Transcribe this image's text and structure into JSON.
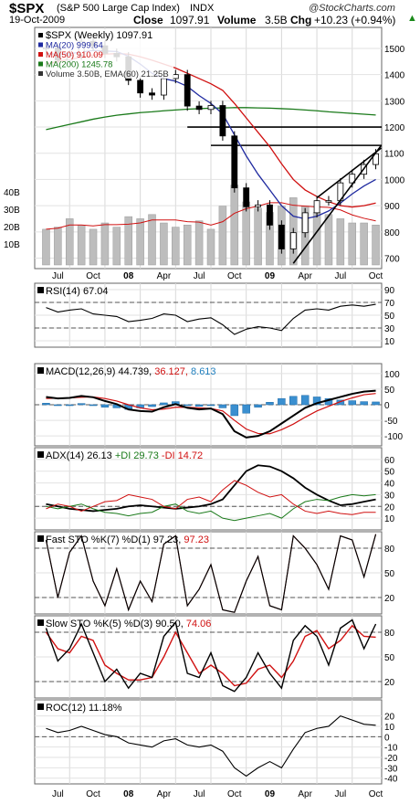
{
  "header": {
    "symbol": "$SPX",
    "name": "(S&P 500 Large Cap Index)",
    "exchange": "INDX",
    "watermark": "@StockCharts.com",
    "date": "19-Oct-2009",
    "close_label": "Close",
    "close_value": "1097.91",
    "volume_label": "Volume",
    "volume_value": "3.5B",
    "chg_label": "Chg",
    "chg_value": "+10.23 (+0.94%)",
    "chg_arrow": "▲"
  },
  "x_axis": {
    "labels": [
      "Jul",
      "Oct",
      "08",
      "Apr",
      "Jul",
      "Oct",
      "09",
      "Apr",
      "Jul",
      "Oct"
    ]
  },
  "chart_data": [
    {
      "type": "candlestick",
      "panel": "price",
      "legend": [
        {
          "text": "$SPX (Weekly) 1097.91",
          "color": "#000000"
        },
        {
          "text": "MA(20) 999.64",
          "color": "#1f2aa0"
        },
        {
          "text": "MA(50) 910.09",
          "color": "#d01010"
        },
        {
          "text": "MA(200) 1245.78",
          "color": "#1a7a1a"
        },
        {
          "text": "Volume 3.50B, EMA(60) 21.25B",
          "color": "#333333"
        }
      ],
      "y_ticks": [
        1500,
        1400,
        1300,
        1200,
        1100,
        1000,
        900,
        800,
        700
      ],
      "volume_ticks": [
        "40B",
        "30B",
        "20B",
        "10B"
      ],
      "ylim": [
        660,
        1580
      ],
      "x_dates": [
        "2007-06",
        "2007-07",
        "2007-08",
        "2007-09",
        "2007-10",
        "2007-11",
        "2007-12",
        "2008-01",
        "2008-02",
        "2008-03",
        "2008-04",
        "2008-05",
        "2008-06",
        "2008-07",
        "2008-08",
        "2008-09",
        "2008-10",
        "2008-11",
        "2008-12",
        "2009-01",
        "2009-02",
        "2009-03",
        "2009-04",
        "2009-05",
        "2009-06",
        "2009-07",
        "2009-08",
        "2009-09",
        "2009-10"
      ],
      "close": [
        1503,
        1455,
        1474,
        1527,
        1510,
        1481,
        1468,
        1378,
        1330,
        1322,
        1385,
        1400,
        1280,
        1267,
        1282,
        1166,
        968,
        896,
        903,
        826,
        735,
        797,
        873,
        919,
        919,
        987,
        1020,
        1057,
        1098
      ],
      "ma20": [
        1480,
        1478,
        1480,
        1486,
        1492,
        1490,
        1488,
        1470,
        1440,
        1405,
        1385,
        1375,
        1355,
        1320,
        1290,
        1250,
        1170,
        1090,
        1020,
        960,
        900,
        860,
        850,
        860,
        880,
        910,
        945,
        975,
        1000
      ],
      "ma50": [
        1440,
        1450,
        1458,
        1466,
        1474,
        1478,
        1480,
        1478,
        1468,
        1455,
        1440,
        1425,
        1405,
        1385,
        1365,
        1340,
        1290,
        1235,
        1180,
        1125,
        1060,
        1000,
        960,
        935,
        915,
        900,
        895,
        900,
        910
      ],
      "ma200": [
        1190,
        1200,
        1210,
        1220,
        1230,
        1238,
        1245,
        1250,
        1255,
        1258,
        1262,
        1265,
        1268,
        1270,
        1272,
        1273,
        1274,
        1274,
        1273,
        1272,
        1270,
        1268,
        1265,
        1262,
        1258,
        1255,
        1252,
        1249,
        1246
      ],
      "volume_b": [
        17,
        18,
        22,
        19,
        17,
        20,
        18,
        23,
        22,
        24,
        20,
        18,
        19,
        21,
        17,
        28,
        38,
        30,
        27,
        25,
        28,
        32,
        28,
        25,
        24,
        22,
        20,
        20,
        19
      ],
      "hlines": [
        1200,
        1130
      ],
      "wedge": {
        "from": [
          "2009-03",
          680
        ],
        "to_upper": [
          "2009-10",
          1120
        ],
        "to_lower": [
          "2009-10",
          1130
        ],
        "upper_start": [
          "2009-03",
          930
        ]
      }
    },
    {
      "type": "line",
      "panel": "rsi",
      "title": "RSI(14) 67.04",
      "y_ticks": [
        90,
        70,
        50,
        30,
        10
      ],
      "ylim": [
        0,
        100
      ],
      "ref_lines": [
        70,
        30
      ],
      "values": [
        62,
        55,
        58,
        60,
        52,
        50,
        48,
        40,
        42,
        45,
        52,
        50,
        40,
        44,
        46,
        35,
        20,
        28,
        32,
        30,
        26,
        45,
        58,
        60,
        58,
        64,
        66,
        64,
        67
      ]
    },
    {
      "type": "macd",
      "panel": "macd",
      "title": "MACD(12,26,9) 44.739, 36.127, 8.613",
      "title_parts": [
        {
          "text": "MACD(12,26,9)",
          "color": "#000000"
        },
        {
          "text": "44.739,",
          "color": "#000000"
        },
        {
          "text": "36.127,",
          "color": "#d01010"
        },
        {
          "text": "8.613",
          "color": "#1f7fbf"
        }
      ],
      "y_ticks": [
        100,
        50,
        0,
        -50,
        -100
      ],
      "ylim": [
        -120,
        120
      ],
      "macd": [
        25,
        20,
        22,
        28,
        24,
        12,
        2,
        -15,
        -20,
        -22,
        -8,
        2,
        -10,
        -15,
        -12,
        -30,
        -85,
        -105,
        -100,
        -85,
        -60,
        -35,
        -10,
        5,
        15,
        25,
        35,
        42,
        45
      ],
      "signal": [
        20,
        21,
        22,
        24,
        25,
        20,
        12,
        0,
        -10,
        -16,
        -14,
        -8,
        -8,
        -10,
        -12,
        -20,
        -50,
        -78,
        -92,
        -93,
        -80,
        -62,
        -40,
        -20,
        -5,
        10,
        22,
        32,
        36
      ],
      "histogram": [
        5,
        -1,
        0,
        4,
        -1,
        -8,
        -10,
        -15,
        -10,
        -6,
        6,
        10,
        -2,
        -5,
        0,
        -10,
        -35,
        -27,
        -8,
        8,
        20,
        27,
        30,
        25,
        20,
        15,
        13,
        10,
        9
      ]
    },
    {
      "type": "line",
      "panel": "adx",
      "title": "ADX(14) 26.13 +DI 29.73 -DI 14.72",
      "title_parts": [
        {
          "text": "ADX(14) 26.13",
          "color": "#000000"
        },
        {
          "text": "+DI 29.73",
          "color": "#1a7a1a"
        },
        {
          "text": "-DI 14.72",
          "color": "#d01010"
        }
      ],
      "y_ticks": [
        60,
        50,
        40,
        30,
        20,
        10
      ],
      "ylim": [
        0,
        70
      ],
      "ref_lines": [
        20
      ],
      "series": [
        {
          "name": "ADX(14)",
          "color": "#000000",
          "values": [
            22,
            20,
            18,
            17,
            16,
            17,
            18,
            20,
            21,
            20,
            19,
            18,
            19,
            20,
            22,
            26,
            38,
            50,
            55,
            54,
            50,
            44,
            36,
            30,
            25,
            21,
            22,
            24,
            26
          ]
        },
        {
          "name": "+DI",
          "color": "#1a7a1a",
          "values": [
            20,
            18,
            20,
            22,
            18,
            15,
            14,
            12,
            14,
            15,
            20,
            22,
            16,
            14,
            16,
            10,
            8,
            10,
            12,
            14,
            10,
            18,
            24,
            26,
            25,
            28,
            30,
            29,
            30
          ]
        },
        {
          "name": "-DI",
          "color": "#d01010",
          "values": [
            18,
            22,
            20,
            16,
            20,
            24,
            25,
            30,
            28,
            26,
            20,
            18,
            26,
            28,
            24,
            34,
            42,
            38,
            32,
            28,
            30,
            22,
            16,
            14,
            16,
            14,
            13,
            15,
            15
          ]
        }
      ]
    },
    {
      "type": "line",
      "panel": "fast_sto",
      "title": "Fast STO %K(7) %D(1) 97.23, 97.23",
      "title_parts": [
        {
          "text": "Fast STO %K(7) %D(1) 97.23,",
          "color": "#000000"
        },
        {
          "text": "97.23",
          "color": "#d01010"
        }
      ],
      "y_ticks": [
        80,
        50,
        20
      ],
      "ylim": [
        0,
        100
      ],
      "ref_lines": [
        80,
        20
      ],
      "values": [
        90,
        20,
        75,
        95,
        40,
        10,
        55,
        5,
        40,
        15,
        85,
        95,
        10,
        30,
        60,
        5,
        2,
        40,
        70,
        10,
        5,
        95,
        80,
        60,
        30,
        95,
        90,
        45,
        97
      ]
    },
    {
      "type": "line",
      "panel": "slow_sto",
      "title": "Slow STO %K(5) %D(3) 90.50, 74.06",
      "title_parts": [
        {
          "text": "Slow STO %K(5) %D(3) 90.50,",
          "color": "#000000"
        },
        {
          "text": "74.06",
          "color": "#d01010"
        }
      ],
      "y_ticks": [
        80,
        50,
        20
      ],
      "ylim": [
        0,
        100
      ],
      "ref_lines": [
        80,
        20
      ],
      "series": [
        {
          "name": "%K(5)",
          "color": "#000000",
          "values": [
            85,
            45,
            60,
            90,
            55,
            20,
            35,
            12,
            30,
            25,
            75,
            92,
            30,
            25,
            55,
            15,
            8,
            25,
            55,
            30,
            12,
            70,
            88,
            75,
            40,
            85,
            95,
            60,
            90
          ]
        },
        {
          "name": "%D(3)",
          "color": "#d01010",
          "values": [
            80,
            60,
            55,
            75,
            70,
            40,
            30,
            22,
            22,
            25,
            50,
            80,
            55,
            30,
            40,
            30,
            15,
            18,
            35,
            40,
            25,
            45,
            75,
            82,
            60,
            70,
            88,
            75,
            74
          ]
        }
      ]
    },
    {
      "type": "line",
      "panel": "roc",
      "title": "ROC(12) 11.18%",
      "y_ticks": [
        20,
        10,
        0,
        -10,
        -20,
        -30,
        -40
      ],
      "ylim": [
        -42,
        32
      ],
      "ref_lines": [
        0
      ],
      "values": [
        8,
        4,
        6,
        10,
        6,
        2,
        0,
        -6,
        -8,
        -10,
        -4,
        -2,
        -8,
        -10,
        -8,
        -14,
        -30,
        -38,
        -30,
        -24,
        -30,
        -12,
        4,
        8,
        10,
        20,
        16,
        12,
        11
      ]
    }
  ]
}
